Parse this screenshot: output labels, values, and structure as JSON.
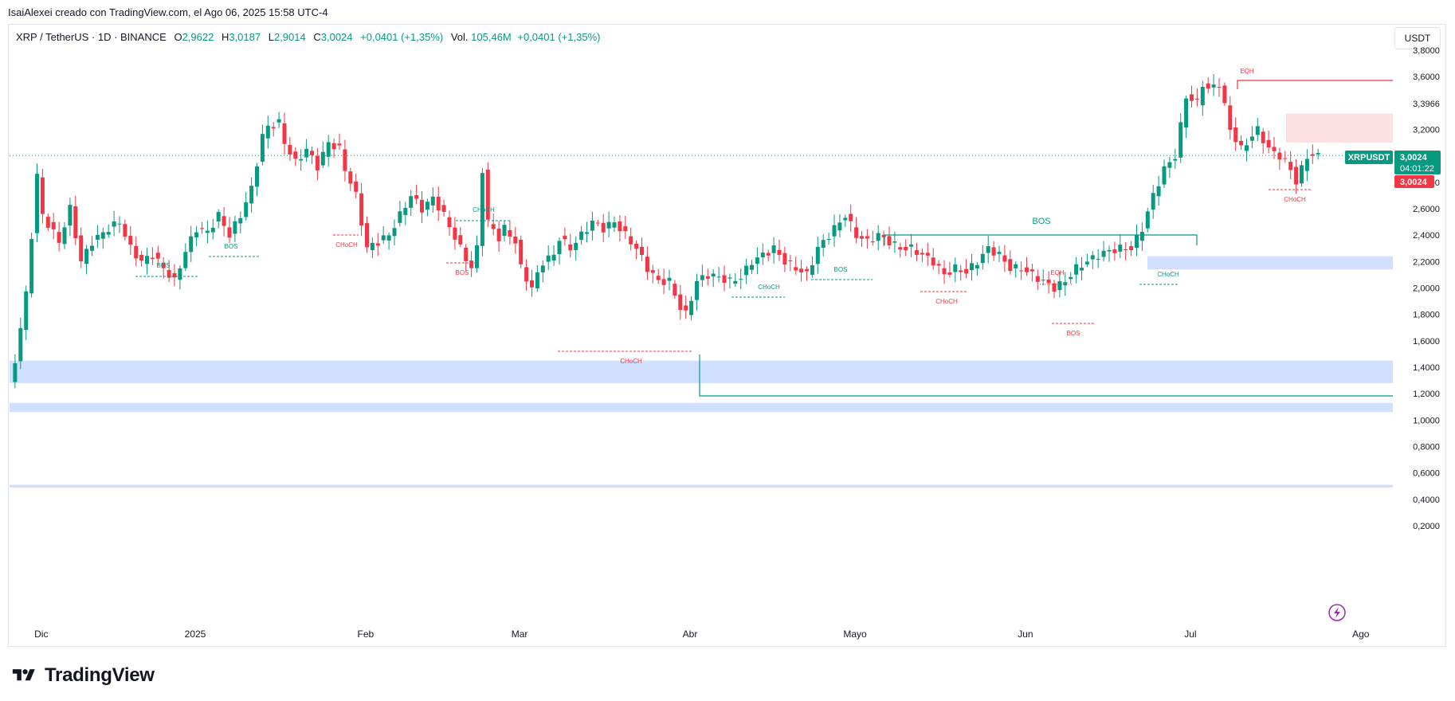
{
  "caption": "IsaiAlexei creado con TradingView.com, el Ago 06, 2025 15:58 UTC-4",
  "legend": {
    "symbol": "XRP / TetherUS · 1D · BINANCE",
    "o_label": "O",
    "o_value": "2,9622",
    "h_label": "H",
    "h_value": "3,0187",
    "l_label": "L",
    "l_value": "2,9014",
    "c_label": "C",
    "c_value": "3,0024",
    "change": "+0,0401 (+1,35%)",
    "vol_label": "Vol.",
    "vol_value": "105,46M",
    "vol_change": "+0,0401 (+1,35%)"
  },
  "unit_button": "USDT",
  "price_badge": {
    "symbol": "XRPUSDT",
    "price": "3,0024",
    "countdown": "04:01:22",
    "price2": "3,0024"
  },
  "watermark": "TradingView",
  "colors": {
    "up": "#089981",
    "down": "#f23645",
    "zone_blue": "#d1e0fe",
    "zone_red": "#fde0e2"
  },
  "chart_data": {
    "type": "candlestick",
    "ylim": [
      0.1,
      3.9
    ],
    "y_ticks": [
      {
        "v": 0.2,
        "label": "0,2000"
      },
      {
        "v": 0.4,
        "label": "0,4000"
      },
      {
        "v": 0.6,
        "label": "0,6000"
      },
      {
        "v": 0.8,
        "label": "0,8000"
      },
      {
        "v": 1.0,
        "label": "1,0000"
      },
      {
        "v": 1.2,
        "label": "1,2000"
      },
      {
        "v": 1.4,
        "label": "1,4000"
      },
      {
        "v": 1.6,
        "label": "1,6000"
      },
      {
        "v": 1.8,
        "label": "1,8000"
      },
      {
        "v": 2.0,
        "label": "2,0000"
      },
      {
        "v": 2.2,
        "label": "2,2000"
      },
      {
        "v": 2.4,
        "label": "2,4000"
      },
      {
        "v": 2.6,
        "label": "2,6000"
      },
      {
        "v": 2.8,
        "label": "2,8000"
      },
      {
        "v": 3.2,
        "label": "3,2000"
      },
      {
        "v": 3.3966,
        "label": "3,3966"
      },
      {
        "v": 3.6,
        "label": "3,6000"
      },
      {
        "v": 3.8,
        "label": "3,8000"
      }
    ],
    "x_labels": [
      {
        "label": "Dic",
        "bar": 2
      },
      {
        "label": "2025",
        "bar": 30
      },
      {
        "label": "Feb",
        "bar": 61
      },
      {
        "label": "Mar",
        "bar": 89
      },
      {
        "label": "Abr",
        "bar": 120
      },
      {
        "label": "Mayo",
        "bar": 150
      },
      {
        "label": "Jun",
        "bar": 181
      },
      {
        "label": "Jul",
        "bar": 211
      },
      {
        "label": "Ago",
        "bar": 242
      }
    ],
    "last_price": 3.0024,
    "anchors": [
      [
        0,
        1.27
      ],
      [
        1,
        1.45
      ],
      [
        3,
        1.95
      ],
      [
        5,
        2.85
      ],
      [
        6,
        2.55
      ],
      [
        9,
        2.35
      ],
      [
        11,
        2.6
      ],
      [
        13,
        2.2
      ],
      [
        15,
        2.35
      ],
      [
        18,
        2.45
      ],
      [
        20,
        2.5
      ],
      [
        22,
        2.3
      ],
      [
        24,
        2.2
      ],
      [
        26,
        2.25
      ],
      [
        28,
        2.15
      ],
      [
        30,
        2.05
      ],
      [
        32,
        2.28
      ],
      [
        34,
        2.45
      ],
      [
        36,
        2.42
      ],
      [
        38,
        2.55
      ],
      [
        40,
        2.4
      ],
      [
        42,
        2.55
      ],
      [
        44,
        2.75
      ],
      [
        46,
        3.15
      ],
      [
        47,
        3.22
      ],
      [
        49,
        3.25
      ],
      [
        50,
        3.1
      ],
      [
        52,
        2.95
      ],
      [
        54,
        3.05
      ],
      [
        56,
        2.92
      ],
      [
        58,
        3.1
      ],
      [
        60,
        3.05
      ],
      [
        61,
        2.9
      ],
      [
        63,
        2.7
      ],
      [
        65,
        2.3
      ],
      [
        67,
        2.35
      ],
      [
        69,
        2.4
      ],
      [
        71,
        2.55
      ],
      [
        73,
        2.7
      ],
      [
        75,
        2.6
      ],
      [
        77,
        2.68
      ],
      [
        79,
        2.55
      ],
      [
        82,
        2.3
      ],
      [
        84,
        2.15
      ],
      [
        85,
        2.3
      ],
      [
        86,
        2.9
      ],
      [
        87,
        2.5
      ],
      [
        89,
        2.38
      ],
      [
        90,
        2.45
      ],
      [
        92,
        2.35
      ],
      [
        93,
        2.15
      ],
      [
        95,
        2.0
      ],
      [
        97,
        2.2
      ],
      [
        99,
        2.25
      ],
      [
        100,
        2.38
      ],
      [
        102,
        2.3
      ],
      [
        104,
        2.4
      ],
      [
        106,
        2.5
      ],
      [
        108,
        2.45
      ],
      [
        110,
        2.5
      ],
      [
        112,
        2.4
      ],
      [
        114,
        2.3
      ],
      [
        116,
        2.15
      ],
      [
        118,
        2.05
      ],
      [
        120,
        2.05
      ],
      [
        122,
        1.85
      ],
      [
        123,
        1.8
      ],
      [
        125,
        2.05
      ],
      [
        127,
        2.1
      ],
      [
        129,
        2.08
      ],
      [
        131,
        2.05
      ],
      [
        133,
        2.08
      ],
      [
        135,
        2.2
      ],
      [
        137,
        2.25
      ],
      [
        139,
        2.3
      ],
      [
        141,
        2.2
      ],
      [
        143,
        2.15
      ],
      [
        145,
        2.1
      ],
      [
        147,
        2.3
      ],
      [
        149,
        2.4
      ],
      [
        151,
        2.5
      ],
      [
        152,
        2.55
      ],
      [
        154,
        2.4
      ],
      [
        156,
        2.35
      ],
      [
        158,
        2.4
      ],
      [
        160,
        2.35
      ],
      [
        162,
        2.3
      ],
      [
        164,
        2.3
      ],
      [
        166,
        2.25
      ],
      [
        168,
        2.2
      ],
      [
        170,
        2.1
      ],
      [
        172,
        2.15
      ],
      [
        174,
        2.12
      ],
      [
        176,
        2.2
      ],
      [
        178,
        2.3
      ],
      [
        180,
        2.25
      ],
      [
        182,
        2.15
      ],
      [
        184,
        2.15
      ],
      [
        186,
        2.1
      ],
      [
        188,
        2.05
      ],
      [
        190,
        2.0
      ],
      [
        192,
        2.05
      ],
      [
        194,
        2.15
      ],
      [
        196,
        2.2
      ],
      [
        198,
        2.25
      ],
      [
        200,
        2.28
      ],
      [
        202,
        2.3
      ],
      [
        204,
        2.3
      ],
      [
        206,
        2.45
      ],
      [
        208,
        2.7
      ],
      [
        210,
        2.9
      ],
      [
        212,
        3.0
      ],
      [
        214,
        3.45
      ],
      [
        216,
        3.4
      ],
      [
        217,
        3.55
      ],
      [
        218,
        3.5
      ],
      [
        220,
        3.55
      ],
      [
        222,
        3.2
      ],
      [
        224,
        3.05
      ],
      [
        226,
        3.15
      ],
      [
        227,
        3.2
      ],
      [
        229,
        3.05
      ],
      [
        231,
        3.0
      ],
      [
        233,
        2.9
      ],
      [
        234,
        2.8
      ],
      [
        236,
        3.0
      ],
      [
        238,
        3.0
      ]
    ]
  },
  "annotations": {
    "bos_1": "BOS",
    "bos_2": "BOS",
    "choch_1": "CHoCH",
    "bos_red_1": "BOS",
    "choch_2": "CHoCH",
    "choch_red_1": "CHoCH",
    "choch_3": "CHoCH",
    "bos_3": "BOS",
    "bos_big": "BOS",
    "choch_red_2": "CHoCH",
    "eqh_1": "EQH",
    "bos_red_2": "BOS",
    "choch_4": "CHoCH",
    "eqh_2": "EQH",
    "choch_red_3": "CHoCH"
  }
}
